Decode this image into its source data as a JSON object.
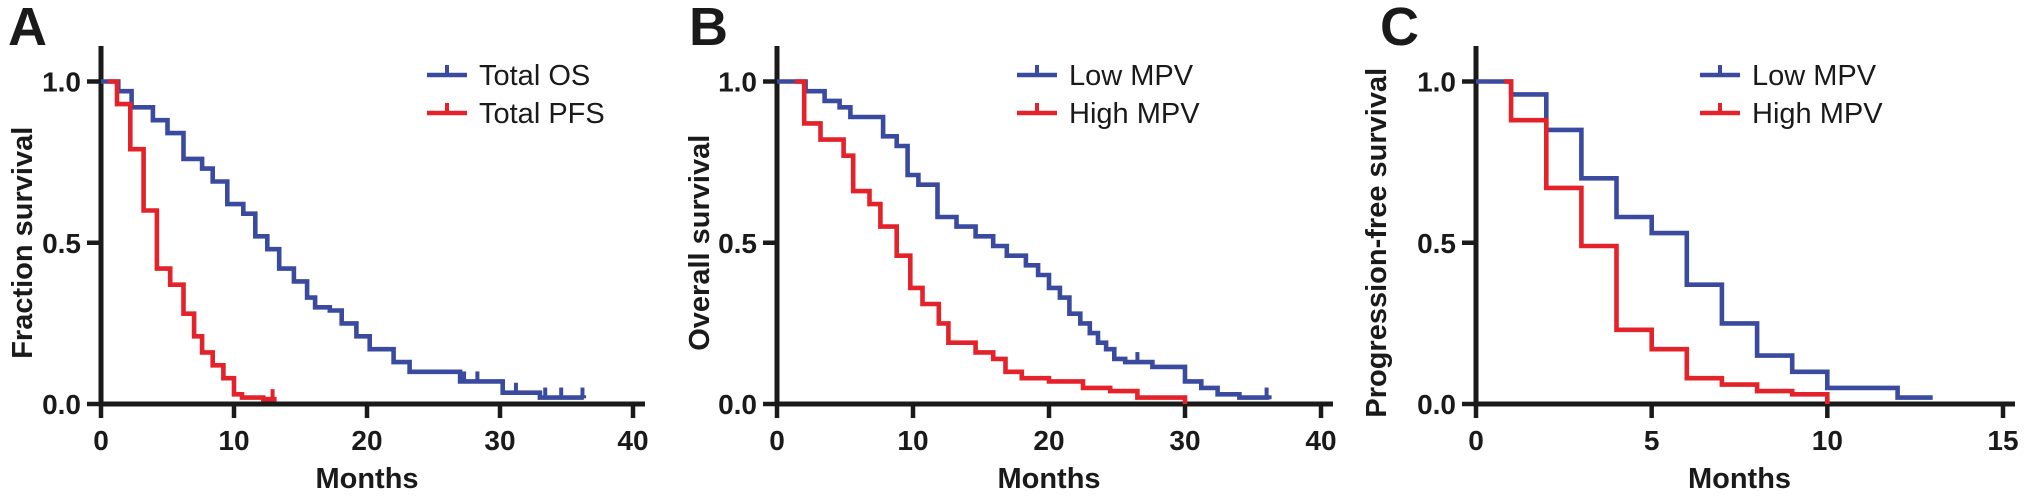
{
  "figure": {
    "background": "#ffffff",
    "axis_color": "#1a1a1a",
    "text_color": "#1a1a1a",
    "blue": "#3a4b9f",
    "red": "#e4222a"
  },
  "chart_data": [
    {
      "type": "line",
      "subtype": "kaplan-meier-step",
      "panel_label": "A",
      "xlabel": "Months",
      "ylabel": "Fraction survival",
      "xlim": [
        0,
        40
      ],
      "ylim": [
        0,
        1.0
      ],
      "xticks": [
        0,
        10,
        20,
        30,
        40
      ],
      "yticks": [
        {
          "value": 1.0,
          "label": "1.0"
        },
        {
          "value": 0.5,
          "label": "0.5"
        },
        {
          "value": 0.0,
          "label": "0.0"
        }
      ],
      "grid": false,
      "legend_position": "top-right",
      "legend": [
        {
          "label": "Total OS",
          "color": "#3a4b9f"
        },
        {
          "label": "Total PFS",
          "color": "#e4222a"
        }
      ],
      "series": [
        {
          "name": "Total OS",
          "color": "#3a4b9f",
          "steps": [
            [
              0,
              1.0
            ],
            [
              1.3,
              0.97
            ],
            [
              2.3,
              0.92
            ],
            [
              3.9,
              0.88
            ],
            [
              5.0,
              0.84
            ],
            [
              6.2,
              0.76
            ],
            [
              7.6,
              0.73
            ],
            [
              8.4,
              0.69
            ],
            [
              9.5,
              0.62
            ],
            [
              10.7,
              0.59
            ],
            [
              11.6,
              0.52
            ],
            [
              12.5,
              0.48
            ],
            [
              13.4,
              0.42
            ],
            [
              14.5,
              0.38
            ],
            [
              15.5,
              0.33
            ],
            [
              16.1,
              0.3
            ],
            [
              17.2,
              0.29
            ],
            [
              18.1,
              0.25
            ],
            [
              19.2,
              0.21
            ],
            [
              20.2,
              0.17
            ],
            [
              22.0,
              0.13
            ],
            [
              23.2,
              0.1
            ],
            [
              27.0,
              0.07
            ],
            [
              30.2,
              0.035
            ],
            [
              33.0,
              0.02
            ],
            [
              36.3,
              0.018
            ]
          ],
          "censor_marks": [
            27.3,
            28.3,
            31.2,
            33.4,
            34.6,
            36.2
          ]
        },
        {
          "name": "Total PFS",
          "color": "#e4222a",
          "steps": [
            [
              0.5,
              1.0
            ],
            [
              1.2,
              0.93
            ],
            [
              2.2,
              0.79
            ],
            [
              3.2,
              0.6
            ],
            [
              4.2,
              0.42
            ],
            [
              5.2,
              0.37
            ],
            [
              6.2,
              0.28
            ],
            [
              7.0,
              0.21
            ],
            [
              7.6,
              0.16
            ],
            [
              8.4,
              0.12
            ],
            [
              9.2,
              0.08
            ],
            [
              10.0,
              0.03
            ],
            [
              10.6,
              0.02
            ],
            [
              12.2,
              0.015
            ],
            [
              13.2,
              0.015
            ]
          ],
          "censor_marks": [
            12.9
          ]
        }
      ]
    },
    {
      "type": "line",
      "subtype": "kaplan-meier-step",
      "panel_label": "B",
      "xlabel": "Months",
      "ylabel": "Overall survival",
      "xlim": [
        0,
        40
      ],
      "ylim": [
        0,
        1.0
      ],
      "xticks": [
        0,
        10,
        20,
        30,
        40
      ],
      "yticks": [
        {
          "value": 1.0,
          "label": "1.0"
        },
        {
          "value": 0.5,
          "label": "0.5"
        },
        {
          "value": 0.0,
          "label": "0.0"
        }
      ],
      "grid": false,
      "legend_position": "top-right",
      "legend": [
        {
          "label": "Low MPV",
          "color": "#3a4b9f"
        },
        {
          "label": "High MPV",
          "color": "#e4222a"
        }
      ],
      "series": [
        {
          "name": "Low MPV",
          "color": "#3a4b9f",
          "steps": [
            [
              0,
              1.0
            ],
            [
              2.1,
              0.97
            ],
            [
              3.5,
              0.94
            ],
            [
              4.6,
              0.92
            ],
            [
              5.4,
              0.89
            ],
            [
              7.8,
              0.83
            ],
            [
              8.8,
              0.8
            ],
            [
              9.6,
              0.71
            ],
            [
              10.4,
              0.68
            ],
            [
              11.8,
              0.58
            ],
            [
              13.2,
              0.55
            ],
            [
              14.6,
              0.52
            ],
            [
              15.9,
              0.49
            ],
            [
              16.9,
              0.46
            ],
            [
              18.3,
              0.43
            ],
            [
              19.2,
              0.4
            ],
            [
              20.0,
              0.36
            ],
            [
              20.8,
              0.33
            ],
            [
              21.5,
              0.28
            ],
            [
              22.3,
              0.25
            ],
            [
              23.0,
              0.22
            ],
            [
              23.6,
              0.19
            ],
            [
              24.2,
              0.17
            ],
            [
              24.8,
              0.14
            ],
            [
              25.6,
              0.13
            ],
            [
              27.6,
              0.115
            ],
            [
              30.0,
              0.07
            ],
            [
              31.2,
              0.05
            ],
            [
              32.4,
              0.03
            ],
            [
              34.0,
              0.02
            ],
            [
              36.2,
              0.015
            ]
          ],
          "censor_marks": [
            26.5,
            36.0
          ]
        },
        {
          "name": "High MPV",
          "color": "#e4222a",
          "steps": [
            [
              1.3,
              1.0
            ],
            [
              2.0,
              0.87
            ],
            [
              3.2,
              0.82
            ],
            [
              4.9,
              0.77
            ],
            [
              5.6,
              0.66
            ],
            [
              6.8,
              0.62
            ],
            [
              7.6,
              0.55
            ],
            [
              8.8,
              0.46
            ],
            [
              9.8,
              0.36
            ],
            [
              10.7,
              0.31
            ],
            [
              11.9,
              0.25
            ],
            [
              12.6,
              0.19
            ],
            [
              14.6,
              0.16
            ],
            [
              15.9,
              0.14
            ],
            [
              16.8,
              0.1
            ],
            [
              18.0,
              0.08
            ],
            [
              20.0,
              0.07
            ],
            [
              22.5,
              0.05
            ],
            [
              24.5,
              0.04
            ],
            [
              26.5,
              0.02
            ],
            [
              30.0,
              0.0
            ]
          ],
          "censor_marks": []
        }
      ]
    },
    {
      "type": "line",
      "subtype": "kaplan-meier-step",
      "panel_label": "C",
      "xlabel": "Months",
      "ylabel": "Progression-free survival",
      "xlim": [
        0,
        15
      ],
      "ylim": [
        0,
        1.0
      ],
      "xticks": [
        0,
        5,
        10,
        15
      ],
      "yticks": [
        {
          "value": 1.0,
          "label": "1.0"
        },
        {
          "value": 0.5,
          "label": "0.5"
        },
        {
          "value": 0.0,
          "label": "0.0"
        }
      ],
      "grid": false,
      "legend_position": "top-right",
      "legend": [
        {
          "label": "Low MPV",
          "color": "#3a4b9f"
        },
        {
          "label": "High MPV",
          "color": "#e4222a"
        }
      ],
      "series": [
        {
          "name": "Low MPV",
          "color": "#3a4b9f",
          "steps": [
            [
              0,
              1.0
            ],
            [
              1,
              0.96
            ],
            [
              2,
              0.85
            ],
            [
              3,
              0.7
            ],
            [
              4,
              0.58
            ],
            [
              5,
              0.53
            ],
            [
              6,
              0.37
            ],
            [
              7,
              0.25
            ],
            [
              8,
              0.15
            ],
            [
              9,
              0.1
            ],
            [
              10,
              0.05
            ],
            [
              12,
              0.02
            ],
            [
              13,
              0.02
            ]
          ],
          "censor_marks": []
        },
        {
          "name": "High MPV",
          "color": "#e4222a",
          "steps": [
            [
              0.8,
              1.0
            ],
            [
              1,
              0.88
            ],
            [
              2,
              0.67
            ],
            [
              3,
              0.49
            ],
            [
              4,
              0.23
            ],
            [
              5,
              0.17
            ],
            [
              6,
              0.08
            ],
            [
              7,
              0.06
            ],
            [
              8,
              0.04
            ],
            [
              9,
              0.03
            ],
            [
              10,
              0.0
            ]
          ],
          "censor_marks": []
        }
      ]
    }
  ]
}
